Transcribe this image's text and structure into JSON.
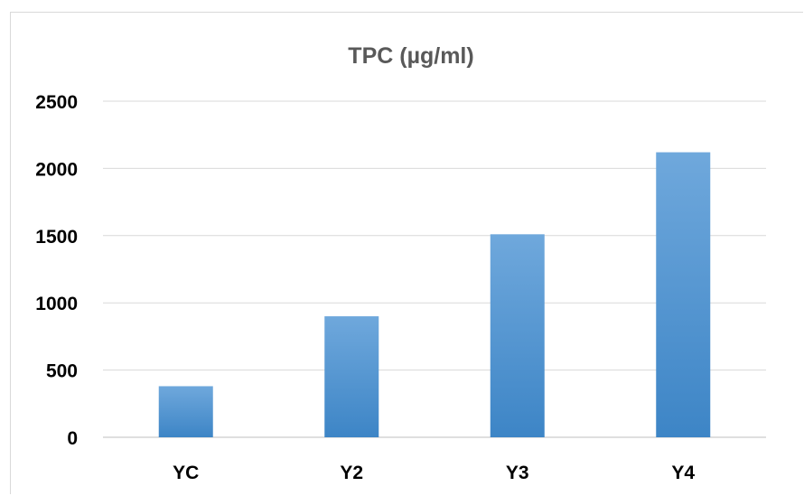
{
  "chart_data": {
    "type": "bar",
    "title": "TPC (µg/ml)",
    "xlabel": "",
    "ylabel": "",
    "categories": [
      "YC",
      "Y2",
      "Y3",
      "Y4"
    ],
    "values": [
      380,
      900,
      1510,
      2120
    ],
    "ylim": [
      0,
      2500
    ],
    "yticks": [
      "0",
      "500",
      "1000",
      "1500",
      "2000",
      "2500"
    ],
    "grid": true,
    "legend": "none",
    "colors": {
      "bar_top": "#6fa8dc",
      "bar_bottom": "#3d85c6",
      "grid": "#d9d9d9",
      "title": "#595959"
    }
  }
}
